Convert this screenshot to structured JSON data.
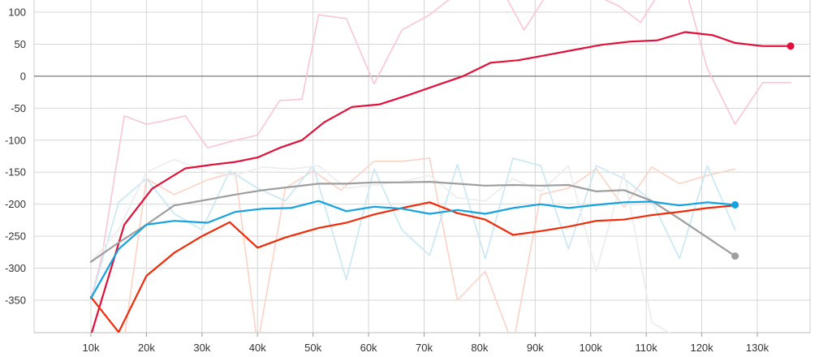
{
  "chart_data": {
    "type": "line",
    "title": "",
    "xlabel": "",
    "ylabel": "",
    "xlim": [
      0,
      140000
    ],
    "ylim": [
      -400,
      110
    ],
    "grid": true,
    "legend": "none",
    "x_ticks": [
      10000,
      20000,
      30000,
      40000,
      50000,
      60000,
      70000,
      80000,
      90000,
      100000,
      110000,
      120000,
      130000
    ],
    "x_tick_labels": [
      "10k",
      "20k",
      "30k",
      "40k",
      "50k",
      "60k",
      "70k",
      "80k",
      "90k",
      "100k",
      "110k",
      "120k",
      "130k"
    ],
    "y_ticks": [
      100,
      50,
      0,
      -50,
      -100,
      -150,
      -200,
      -250,
      -300,
      -350
    ],
    "y_tick_labels": [
      "100",
      "50",
      "0",
      "-50",
      "-100",
      "-150",
      "-200",
      "-250",
      "-300",
      "-350"
    ],
    "zero_line": true,
    "series": [
      {
        "color": "#f9c6d4",
        "role": "raw",
        "x": [
          10000,
          12000,
          16000,
          20000,
          23000,
          27000,
          31000,
          36000,
          40000,
          44000,
          48000,
          51000,
          56000,
          61000,
          66000,
          71000,
          76000,
          80000,
          84000,
          88000,
          93000,
          97000,
          101000,
          105000,
          109000,
          113000,
          117000,
          121000,
          126000,
          131000,
          136000
        ],
        "y": [
          -350,
          -280,
          -62,
          -75,
          -70,
          -62,
          -112,
          -100,
          -92,
          -38,
          -36,
          96,
          90,
          -12,
          72,
          96,
          130,
          140,
          136,
          72,
          140,
          140,
          126,
          110,
          84,
          140,
          140,
          12,
          -75,
          -10,
          -10
        ]
      },
      {
        "color": "#fbd3c4",
        "role": "raw",
        "x": [
          10000,
          16000,
          20000,
          25000,
          31000,
          36000,
          40000,
          45000,
          50000,
          55000,
          61000,
          66000,
          71000,
          76000,
          81000,
          86000,
          91000,
          96000,
          101000,
          106000,
          111000,
          116000,
          121000,
          126000
        ],
        "y": [
          -345,
          -410,
          -160,
          -185,
          -162,
          -150,
          -420,
          -175,
          -148,
          -178,
          -133,
          -133,
          -128,
          -350,
          -305,
          -420,
          -185,
          -175,
          -145,
          -205,
          -142,
          -168,
          -155,
          -145
        ]
      },
      {
        "color": "#c7e7f5",
        "role": "raw",
        "x": [
          10000,
          15000,
          20000,
          25000,
          30000,
          35000,
          40000,
          45000,
          50000,
          56000,
          61000,
          66000,
          71000,
          76000,
          81000,
          86000,
          91000,
          96000,
          101000,
          106000,
          111000,
          116000,
          121000,
          126000
        ],
        "y": [
          -350,
          -197,
          -160,
          -215,
          -240,
          -148,
          -175,
          -195,
          -140,
          -318,
          -145,
          -240,
          -280,
          -138,
          -285,
          -128,
          -140,
          -270,
          -140,
          -160,
          -195,
          -285,
          -140,
          -240
        ]
      },
      {
        "color": "#ececec",
        "role": "raw",
        "x": [
          10000,
          15000,
          20000,
          25000,
          31000,
          36000,
          41000,
          46000,
          51000,
          56000,
          61000,
          66000,
          71000,
          76000,
          81000,
          86000,
          91000,
          96000,
          101000,
          106000,
          111000,
          116000
        ],
        "y": [
          -290,
          -240,
          -150,
          -130,
          -150,
          -155,
          -142,
          -145,
          -140,
          -175,
          -170,
          -165,
          -155,
          -190,
          -195,
          -160,
          -180,
          -140,
          -305,
          -150,
          -385,
          -410
        ]
      },
      {
        "color": "#e0103a",
        "role": "smoothed",
        "x": [
          10000,
          16000,
          21000,
          27000,
          32000,
          36000,
          40000,
          44000,
          48000,
          52000,
          57000,
          62000,
          67000,
          72000,
          77000,
          82000,
          87000,
          92000,
          97000,
          102000,
          107000,
          112000,
          117000,
          122000,
          126000,
          131000,
          136000
        ],
        "y": [
          -405,
          -232,
          -176,
          -144,
          -138,
          -134,
          -127,
          -112,
          -100,
          -72,
          -48,
          -44,
          -30,
          -15,
          0,
          21,
          25,
          33,
          41,
          49,
          54,
          56,
          69,
          64,
          52,
          47,
          47
        ]
      },
      {
        "color": "#9e9e9e",
        "role": "smoothed",
        "x": [
          10000,
          15000,
          20000,
          25000,
          31000,
          36000,
          41000,
          46000,
          51000,
          56000,
          61000,
          66000,
          71000,
          76000,
          81000,
          86000,
          91000,
          96000,
          101000,
          106000,
          111000,
          116000,
          121000,
          126000
        ],
        "y": [
          -290,
          -260,
          -232,
          -202,
          -193,
          -185,
          -178,
          -173,
          -168,
          -168,
          -166,
          -166,
          -165,
          -168,
          -171,
          -170,
          -171,
          -170,
          -180,
          -178,
          -195,
          -223,
          -252,
          -281
        ]
      },
      {
        "color": "#f02b0a",
        "role": "smoothed",
        "x": [
          10000,
          15000,
          20000,
          25000,
          30000,
          35000,
          40000,
          45000,
          51000,
          56000,
          61000,
          66000,
          71000,
          76000,
          81000,
          86000,
          91000,
          96000,
          101000,
          106000,
          111000,
          116000,
          121000,
          126000
        ],
        "y": [
          -345,
          -400,
          -312,
          -276,
          -250,
          -228,
          -268,
          -252,
          -237,
          -229,
          -216,
          -206,
          -197,
          -214,
          -224,
          -248,
          -242,
          -235,
          -226,
          -224,
          -217,
          -212,
          -206,
          -202
        ]
      },
      {
        "color": "#14a3e0",
        "role": "smoothed",
        "x": [
          10000,
          15000,
          20000,
          25000,
          31000,
          36000,
          41000,
          46000,
          51000,
          56000,
          61000,
          66000,
          71000,
          76000,
          81000,
          86000,
          91000,
          96000,
          101000,
          106000,
          111000,
          116000,
          121000,
          126000
        ],
        "y": [
          -347,
          -270,
          -232,
          -226,
          -229,
          -212,
          -207,
          -206,
          -195,
          -211,
          -204,
          -207,
          -215,
          -209,
          -215,
          -206,
          -200,
          -206,
          -201,
          -197,
          -196,
          -202,
          -197,
          -201
        ]
      }
    ],
    "end_markers": [
      {
        "color": "#e0103a",
        "x": 136000,
        "y": 47
      },
      {
        "color": "#14a3e0",
        "x": 126000,
        "y": -201
      },
      {
        "color": "#9e9e9e",
        "x": 126000,
        "y": -281
      }
    ]
  }
}
